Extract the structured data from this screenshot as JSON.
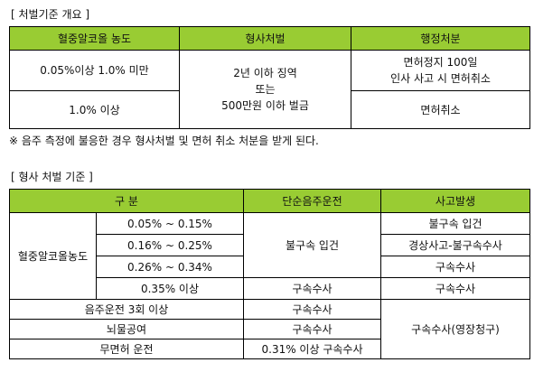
{
  "section1": {
    "title": "[ 처벌기준 개요 ]",
    "headers": [
      "혈중알코올 농도",
      "형사처벌",
      "행정처분"
    ],
    "row1": {
      "bac": "0.05%이상 1.0% 미만",
      "admin_line1": "면허정지 100일",
      "admin_line2": "인사 사고 시 면허취소"
    },
    "row2": {
      "bac": "1.0% 이상",
      "admin": "면허취소"
    },
    "criminal_line1": "2년 이하 징역",
    "criminal_line2": "또는",
    "criminal_line3": "500만원 이하 벌금",
    "note": "※ 음주 측정에 불응한 경우 형사처벌 및 면허 취소 처분을 받게 된다."
  },
  "section2": {
    "title": "[ 형사 처벌 기준 ]",
    "headers": [
      "구  분",
      "단순음주운전",
      "사고발생"
    ],
    "bac_label": "혈중알코올농도",
    "ranges": [
      "0.05%  ~  0.15%",
      "0.16%  ~  0.25%",
      "0.26%  ~  0.34%",
      "0.35% 이상"
    ],
    "simple_1to3": "불구속 입건",
    "simple_4": "구속수사",
    "accident": [
      "불구속 입건",
      "경상사고-불구속수사",
      "구속수사",
      "구속수사"
    ],
    "repeat": {
      "label": "음주운전 3회 이상",
      "simple": "구속수사"
    },
    "bribe": {
      "label": "뇌물공여",
      "simple": "구속수사"
    },
    "unlicensed": {
      "label": "무면허 운전",
      "simple": "0.31% 이상 구속수사"
    },
    "accident_merged": "구속수사(영장청구)"
  }
}
